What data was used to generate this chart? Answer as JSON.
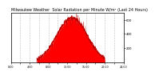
{
  "title": "Milwaukee Weather  Solar Radiation per Minute W/m² (Last 24 Hours)",
  "bg_color": "#ffffff",
  "fill_color": "#ff0000",
  "line_color": "#bb0000",
  "grid_color": "#888888",
  "text_color": "#000000",
  "ylim": [
    0,
    700
  ],
  "yticks": [
    200,
    400,
    600
  ],
  "xlim": [
    0,
    1440
  ],
  "peak_minute": 780,
  "peak_value": 630,
  "sigma_minutes": 195,
  "day_start": 330,
  "day_end": 1200,
  "num_points": 1440,
  "noise_seed": 7,
  "title_fontsize": 3.5,
  "tick_fontsize": 2.8
}
